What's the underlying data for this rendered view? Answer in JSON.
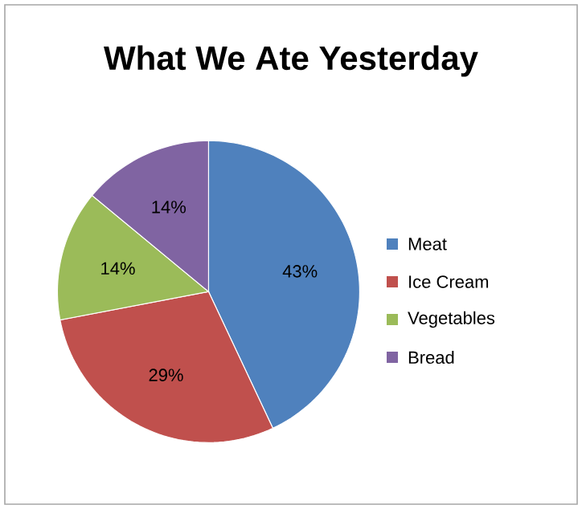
{
  "chart_data": {
    "type": "pie",
    "title": "What We Ate Yesterday",
    "categories": [
      "Meat",
      "Ice Cream",
      "Vegetables",
      "Bread"
    ],
    "values": [
      43,
      29,
      14,
      14
    ],
    "value_labels": [
      "43%",
      "29%",
      "14%",
      "14%"
    ],
    "colors": [
      "#4f81bd",
      "#c0504d",
      "#9bbb59",
      "#8064a2"
    ],
    "legend": "right"
  }
}
